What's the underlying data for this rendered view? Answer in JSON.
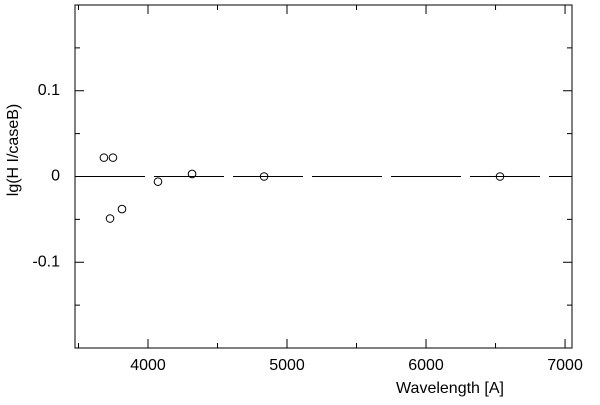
{
  "chart_data": {
    "type": "scatter",
    "xlabel": "Wavelength [A]",
    "ylabel": "lg(H I/caseB)",
    "x": [
      3683,
      3748,
      3727,
      3813,
      4072,
      4317,
      4835,
      6532
    ],
    "values": [
      0.022,
      0.022,
      -0.049,
      -0.038,
      -0.006,
      0.003,
      0.0,
      0.0
    ],
    "color": "#000000",
    "xlim": [
      3475,
      7050
    ],
    "xticks": [
      4000,
      5000,
      6000,
      7000
    ],
    "xminorticks": [
      3500,
      4500,
      5500,
      6500
    ],
    "ylim": [
      -0.2,
      0.2
    ],
    "yticks": [
      -0.1,
      0,
      0.1
    ],
    "yminorticks": [
      -0.15,
      -0.05,
      0.05,
      0.15
    ],
    "reference_line": 0
  }
}
